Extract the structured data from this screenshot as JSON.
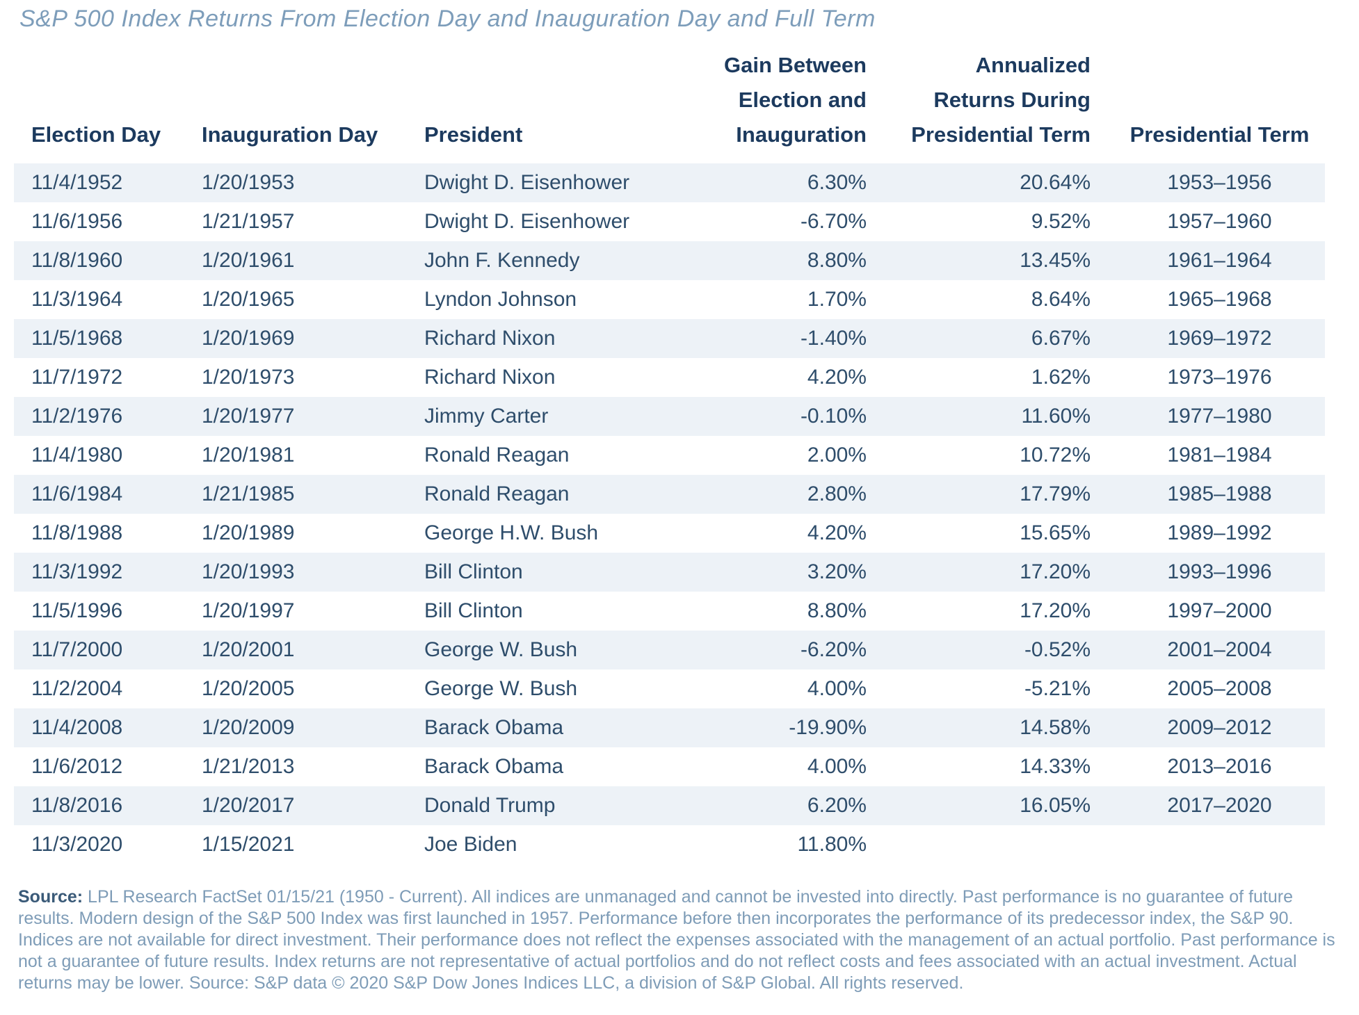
{
  "title": "S&P 500 Index Returns From Election Day and Inauguration Day and Full Term",
  "table": {
    "headers": {
      "election_day": "Election Day",
      "inauguration_day": "Inauguration Day",
      "president": "President",
      "gain": "Gain Between\nElection and\nInauguration",
      "annualized": "Annualized\nReturns During\nPresidential Term",
      "term": "Presidential Term"
    }
  },
  "chart_data": {
    "type": "table",
    "title": "S&P 500 Index Returns From Election Day and Inauguration Day and Full Term",
    "columns": [
      "Election Day",
      "Inauguration Day",
      "President",
      "Gain Between Election and Inauguration",
      "Annualized Returns During Presidential Term",
      "Presidential Term"
    ],
    "column_keys": [
      "election-day",
      "inauguration-day",
      "president",
      "gain-election-to-inauguration",
      "annualized-return-term",
      "presidential-term"
    ],
    "rows": [
      [
        "11/4/1952",
        "1/20/1953",
        "Dwight D. Eisenhower",
        "6.30%",
        "20.64%",
        "1953–1956"
      ],
      [
        "11/6/1956",
        "1/21/1957",
        "Dwight D. Eisenhower",
        "-6.70%",
        "9.52%",
        "1957–1960"
      ],
      [
        "11/8/1960",
        "1/20/1961",
        "John F. Kennedy",
        "8.80%",
        "13.45%",
        "1961–1964"
      ],
      [
        "11/3/1964",
        "1/20/1965",
        "Lyndon Johnson",
        "1.70%",
        "8.64%",
        "1965–1968"
      ],
      [
        "11/5/1968",
        "1/20/1969",
        "Richard Nixon",
        "-1.40%",
        "6.67%",
        "1969–1972"
      ],
      [
        "11/7/1972",
        "1/20/1973",
        "Richard Nixon",
        "4.20%",
        "1.62%",
        "1973–1976"
      ],
      [
        "11/2/1976",
        "1/20/1977",
        "Jimmy Carter",
        "-0.10%",
        "11.60%",
        "1977–1980"
      ],
      [
        "11/4/1980",
        "1/20/1981",
        "Ronald Reagan",
        "2.00%",
        "10.72%",
        "1981–1984"
      ],
      [
        "11/6/1984",
        "1/21/1985",
        "Ronald Reagan",
        "2.80%",
        "17.79%",
        "1985–1988"
      ],
      [
        "11/8/1988",
        "1/20/1989",
        "George H.W. Bush",
        "4.20%",
        "15.65%",
        "1989–1992"
      ],
      [
        "11/3/1992",
        "1/20/1993",
        "Bill Clinton",
        "3.20%",
        "17.20%",
        "1993–1996"
      ],
      [
        "11/5/1996",
        "1/20/1997",
        "Bill Clinton",
        "8.80%",
        "17.20%",
        "1997–2000"
      ],
      [
        "11/7/2000",
        "1/20/2001",
        "George W. Bush",
        "-6.20%",
        "-0.52%",
        "2001–2004"
      ],
      [
        "11/2/2004",
        "1/20/2005",
        "George W. Bush",
        "4.00%",
        "-5.21%",
        "2005–2008"
      ],
      [
        "11/4/2008",
        "1/20/2009",
        "Barack Obama",
        "-19.90%",
        "14.58%",
        "2009–2012"
      ],
      [
        "11/6/2012",
        "1/21/2013",
        "Barack Obama",
        "4.00%",
        "14.33%",
        "2013–2016"
      ],
      [
        "11/8/2016",
        "1/20/2017",
        "Donald Trump",
        "6.20%",
        "16.05%",
        "2017–2020"
      ],
      [
        "11/3/2020",
        "1/15/2021",
        "Joe Biden",
        "11.80%",
        "",
        ""
      ]
    ]
  },
  "footnote": {
    "source_label": "Source:",
    "text": " LPL Research FactSet 01/15/21 (1950 - Current). All indices are unmanaged and cannot be invested into directly. Past performance is no guarantee of future results. Modern design of the S&P 500 Index was first launched in 1957. Performance before then incorporates the performance of its predecessor index, the S&P 90. Indices are not available for direct investment. Their performance does not reflect the expenses associated with the management of an actual portfolio. Past performance is not a guarantee of future results. Index returns are not representative of actual portfolios and do not reflect costs and fees associated with an actual investment. Actual returns may be lower. Source: S&P data © 2020 S&P Dow Jones Indices LLC, a division of S&P Global. All rights reserved."
  }
}
